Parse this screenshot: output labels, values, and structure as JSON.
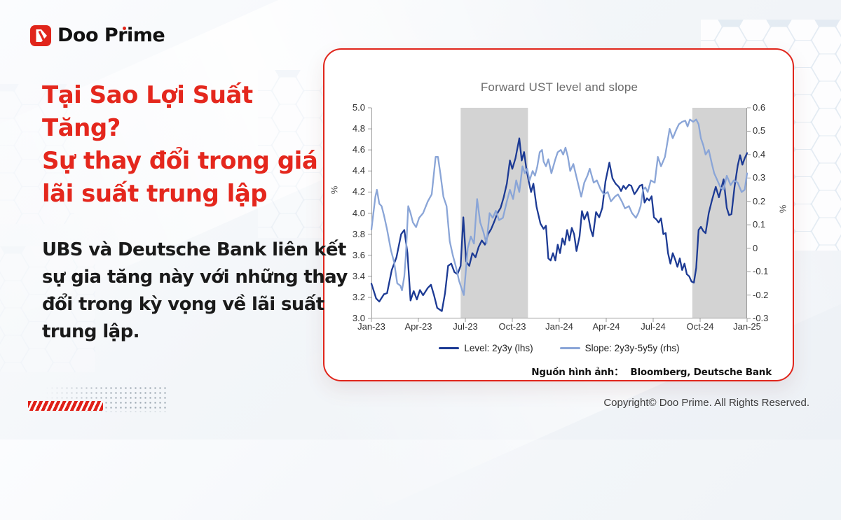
{
  "logo": {
    "text": "Doo Prime"
  },
  "headline": {
    "line1": "Tại Sao Lợi Suất Tăng?",
    "line2": "Sự thay đổi trong giá lãi suất trung lập",
    "color": "#e4271d"
  },
  "body": {
    "text": "UBS và Deutsche Bank liên kết sự gia tăng này với những thay đổi trong kỳ vọng về lãi suất trung lập."
  },
  "footer": {
    "copyright": "Copyright© Doo Prime. All Rights Reserved."
  },
  "colors": {
    "brand_red": "#e0251b",
    "level_line": "#1c3a94",
    "slope_line": "#8aa5d7",
    "shaded_band": "#d3d3d3",
    "axis": "#9b9b9b"
  },
  "chart_data": {
    "type": "line",
    "title": "Forward UST level and slope",
    "source": {
      "label": "Nguồn hình ảnh：",
      "value": "Bloomberg, Deutsche Bank"
    },
    "legend_position": "bottom",
    "grid": false,
    "x_axis": {
      "range_months": [
        0,
        24
      ],
      "tick_months": [
        0,
        3,
        6,
        9,
        12,
        15,
        18,
        21,
        24
      ],
      "tick_labels": [
        "Jan-23",
        "Apr-23",
        "Jul-23",
        "Oct-23",
        "Jan-24",
        "Apr-24",
        "Jul-24",
        "Oct-24",
        "Jan-25"
      ]
    },
    "y_left": {
      "label": "%",
      "min": 3.0,
      "max": 5.0,
      "ticks": [
        "5.0",
        "4.8",
        "4.6",
        "4.4",
        "4.2",
        "4.0",
        "3.8",
        "3.6",
        "3.4",
        "3.2",
        "3.0"
      ]
    },
    "y_right": {
      "label": "%",
      "min": -0.3,
      "max": 0.6,
      "ticks": [
        "0.6",
        "0.5",
        "0.4",
        "0.3",
        "0.2",
        "0.1",
        "0",
        "-0.1",
        "-0.2",
        "-0.3"
      ]
    },
    "shaded_bands_months": [
      [
        5.7,
        10.0
      ],
      [
        20.5,
        24.0
      ]
    ],
    "band_color": "#d3d3d3",
    "axis_color": "#9b9b9b",
    "series": [
      {
        "name": "Level: 2y3y (lhs)",
        "axis": "left",
        "color": "#1c3a94",
        "points": [
          [
            0,
            3.33
          ],
          [
            0.3,
            3.19
          ],
          [
            0.5,
            3.16
          ],
          [
            0.8,
            3.23
          ],
          [
            1.0,
            3.24
          ],
          [
            1.3,
            3.46
          ],
          [
            1.6,
            3.58
          ],
          [
            1.9,
            3.8
          ],
          [
            2.1,
            3.84
          ],
          [
            2.3,
            3.62
          ],
          [
            2.5,
            3.17
          ],
          [
            2.7,
            3.26
          ],
          [
            2.9,
            3.18
          ],
          [
            3.1,
            3.27
          ],
          [
            3.3,
            3.22
          ],
          [
            3.6,
            3.29
          ],
          [
            3.8,
            3.32
          ],
          [
            4.0,
            3.22
          ],
          [
            4.2,
            3.1
          ],
          [
            4.5,
            3.07
          ],
          [
            4.7,
            3.24
          ],
          [
            4.9,
            3.5
          ],
          [
            5.1,
            3.52
          ],
          [
            5.3,
            3.44
          ],
          [
            5.5,
            3.42
          ],
          [
            5.7,
            3.5
          ],
          [
            5.87,
            3.96
          ],
          [
            6.05,
            3.54
          ],
          [
            6.25,
            3.5
          ],
          [
            6.45,
            3.62
          ],
          [
            6.65,
            3.58
          ],
          [
            6.85,
            3.68
          ],
          [
            7.05,
            3.74
          ],
          [
            7.25,
            3.7
          ],
          [
            7.45,
            3.8
          ],
          [
            7.65,
            3.85
          ],
          [
            7.85,
            3.92
          ],
          [
            8.05,
            4.0
          ],
          [
            8.25,
            4.05
          ],
          [
            8.45,
            4.15
          ],
          [
            8.65,
            4.28
          ],
          [
            8.85,
            4.5
          ],
          [
            9.0,
            4.42
          ],
          [
            9.2,
            4.52
          ],
          [
            9.45,
            4.71
          ],
          [
            9.6,
            4.5
          ],
          [
            9.75,
            4.58
          ],
          [
            9.9,
            4.42
          ],
          [
            10.05,
            4.3
          ],
          [
            10.2,
            4.2
          ],
          [
            10.35,
            4.28
          ],
          [
            10.55,
            4.06
          ],
          [
            10.8,
            3.9
          ],
          [
            11.0,
            3.85
          ],
          [
            11.15,
            3.88
          ],
          [
            11.3,
            3.57
          ],
          [
            11.45,
            3.55
          ],
          [
            11.6,
            3.62
          ],
          [
            11.75,
            3.55
          ],
          [
            11.9,
            3.7
          ],
          [
            12.05,
            3.62
          ],
          [
            12.2,
            3.76
          ],
          [
            12.35,
            3.7
          ],
          [
            12.5,
            3.84
          ],
          [
            12.65,
            3.74
          ],
          [
            12.8,
            3.86
          ],
          [
            12.95,
            3.8
          ],
          [
            13.1,
            3.64
          ],
          [
            13.3,
            3.78
          ],
          [
            13.45,
            4.02
          ],
          [
            13.6,
            3.94
          ],
          [
            13.8,
            4.01
          ],
          [
            14.0,
            3.85
          ],
          [
            14.15,
            3.78
          ],
          [
            14.35,
            4.01
          ],
          [
            14.55,
            3.96
          ],
          [
            14.75,
            4.05
          ],
          [
            14.95,
            4.3
          ],
          [
            15.2,
            4.48
          ],
          [
            15.4,
            4.33
          ],
          [
            15.6,
            4.28
          ],
          [
            15.8,
            4.25
          ],
          [
            15.95,
            4.21
          ],
          [
            16.1,
            4.26
          ],
          [
            16.25,
            4.23
          ],
          [
            16.45,
            4.27
          ],
          [
            16.6,
            4.26
          ],
          [
            16.8,
            4.18
          ],
          [
            16.95,
            4.21
          ],
          [
            17.15,
            4.26
          ],
          [
            17.3,
            4.27
          ],
          [
            17.45,
            4.1
          ],
          [
            17.6,
            4.14
          ],
          [
            17.75,
            4.12
          ],
          [
            17.9,
            4.16
          ],
          [
            18.05,
            3.96
          ],
          [
            18.2,
            3.94
          ],
          [
            18.35,
            3.91
          ],
          [
            18.5,
            3.95
          ],
          [
            18.65,
            3.8
          ],
          [
            18.8,
            3.81
          ],
          [
            18.95,
            3.62
          ],
          [
            19.1,
            3.52
          ],
          [
            19.25,
            3.62
          ],
          [
            19.4,
            3.56
          ],
          [
            19.55,
            3.49
          ],
          [
            19.7,
            3.57
          ],
          [
            19.85,
            3.46
          ],
          [
            20.0,
            3.52
          ],
          [
            20.15,
            3.42
          ],
          [
            20.3,
            3.4
          ],
          [
            20.45,
            3.35
          ],
          [
            20.6,
            3.34
          ],
          [
            20.75,
            3.48
          ],
          [
            20.9,
            3.84
          ],
          [
            21.05,
            3.87
          ],
          [
            21.2,
            3.83
          ],
          [
            21.35,
            3.81
          ],
          [
            21.55,
            4.0
          ],
          [
            21.75,
            4.12
          ],
          [
            21.9,
            4.2
          ],
          [
            22.0,
            4.25
          ],
          [
            22.2,
            4.15
          ],
          [
            22.5,
            4.32
          ],
          [
            22.7,
            4.05
          ],
          [
            22.85,
            3.98
          ],
          [
            23.0,
            3.99
          ],
          [
            23.2,
            4.25
          ],
          [
            23.4,
            4.45
          ],
          [
            23.55,
            4.55
          ],
          [
            23.7,
            4.46
          ],
          [
            23.85,
            4.52
          ],
          [
            24,
            4.57
          ]
        ]
      },
      {
        "name": "Slope: 2y3y-5y5y (rhs)",
        "axis": "right",
        "color": "#8aa5d7",
        "points": [
          [
            0,
            0.08
          ],
          [
            0.25,
            0.22
          ],
          [
            0.35,
            0.25
          ],
          [
            0.5,
            0.19
          ],
          [
            0.65,
            0.18
          ],
          [
            0.8,
            0.14
          ],
          [
            1.0,
            0.08
          ],
          [
            1.25,
            -0.01
          ],
          [
            1.45,
            -0.06
          ],
          [
            1.65,
            -0.15
          ],
          [
            1.85,
            -0.16
          ],
          [
            1.95,
            -0.18
          ],
          [
            2.1,
            -0.12
          ],
          [
            2.2,
            -0.03
          ],
          [
            2.35,
            0.18
          ],
          [
            2.5,
            0.15
          ],
          [
            2.65,
            0.11
          ],
          [
            2.85,
            0.09
          ],
          [
            3.05,
            0.13
          ],
          [
            3.3,
            0.15
          ],
          [
            3.6,
            0.2
          ],
          [
            3.85,
            0.23
          ],
          [
            4.1,
            0.39
          ],
          [
            4.25,
            0.39
          ],
          [
            4.4,
            0.32
          ],
          [
            4.6,
            0.22
          ],
          [
            4.8,
            0.18
          ],
          [
            5.0,
            0.03
          ],
          [
            5.2,
            -0.03
          ],
          [
            5.4,
            -0.08
          ],
          [
            5.6,
            -0.14
          ],
          [
            5.75,
            -0.17
          ],
          [
            5.9,
            -0.2
          ],
          [
            6.15,
            0.0
          ],
          [
            6.35,
            0.05
          ],
          [
            6.55,
            0.02
          ],
          [
            6.75,
            0.21
          ],
          [
            6.95,
            0.11
          ],
          [
            7.15,
            0.07
          ],
          [
            7.35,
            0.02
          ],
          [
            7.55,
            0.15
          ],
          [
            7.75,
            0.13
          ],
          [
            7.95,
            0.16
          ],
          [
            8.15,
            0.12
          ],
          [
            8.4,
            0.13
          ],
          [
            8.65,
            0.2
          ],
          [
            8.85,
            0.25
          ],
          [
            9.05,
            0.21
          ],
          [
            9.25,
            0.29
          ],
          [
            9.45,
            0.24
          ],
          [
            9.65,
            0.35
          ],
          [
            9.8,
            0.32
          ],
          [
            9.95,
            0.34
          ],
          [
            10.1,
            0.29
          ],
          [
            10.3,
            0.33
          ],
          [
            10.45,
            0.31
          ],
          [
            10.6,
            0.35
          ],
          [
            10.75,
            0.41
          ],
          [
            10.9,
            0.42
          ],
          [
            11.0,
            0.37
          ],
          [
            11.15,
            0.35
          ],
          [
            11.3,
            0.38
          ],
          [
            11.5,
            0.32
          ],
          [
            11.75,
            0.38
          ],
          [
            11.9,
            0.41
          ],
          [
            12.1,
            0.42
          ],
          [
            12.25,
            0.4
          ],
          [
            12.4,
            0.43
          ],
          [
            12.55,
            0.39
          ],
          [
            12.7,
            0.33
          ],
          [
            12.9,
            0.36
          ],
          [
            13.15,
            0.29
          ],
          [
            13.4,
            0.22
          ],
          [
            13.6,
            0.28
          ],
          [
            13.8,
            0.31
          ],
          [
            13.95,
            0.34
          ],
          [
            14.2,
            0.28
          ],
          [
            14.4,
            0.29
          ],
          [
            14.65,
            0.25
          ],
          [
            14.85,
            0.23
          ],
          [
            15.1,
            0.24
          ],
          [
            15.3,
            0.2
          ],
          [
            15.55,
            0.22
          ],
          [
            15.75,
            0.23
          ],
          [
            16.0,
            0.2
          ],
          [
            16.2,
            0.17
          ],
          [
            16.45,
            0.18
          ],
          [
            16.65,
            0.15
          ],
          [
            16.9,
            0.13
          ],
          [
            17.05,
            0.15
          ],
          [
            17.2,
            0.18
          ],
          [
            17.35,
            0.25
          ],
          [
            17.5,
            0.26
          ],
          [
            17.65,
            0.24
          ],
          [
            17.85,
            0.29
          ],
          [
            18.1,
            0.28
          ],
          [
            18.3,
            0.39
          ],
          [
            18.5,
            0.35
          ],
          [
            18.75,
            0.39
          ],
          [
            19.05,
            0.51
          ],
          [
            19.25,
            0.47
          ],
          [
            19.5,
            0.51
          ],
          [
            19.65,
            0.53
          ],
          [
            19.85,
            0.54
          ],
          [
            20.05,
            0.545
          ],
          [
            20.2,
            0.52
          ],
          [
            20.35,
            0.55
          ],
          [
            20.55,
            0.54
          ],
          [
            20.75,
            0.55
          ],
          [
            20.9,
            0.53
          ],
          [
            21.05,
            0.47
          ],
          [
            21.2,
            0.44
          ],
          [
            21.35,
            0.4
          ],
          [
            21.55,
            0.42
          ],
          [
            21.75,
            0.36
          ],
          [
            21.9,
            0.32
          ],
          [
            22.1,
            0.29
          ],
          [
            22.3,
            0.26
          ],
          [
            22.5,
            0.25
          ],
          [
            22.7,
            0.31
          ],
          [
            22.95,
            0.27
          ],
          [
            23.15,
            0.29
          ],
          [
            23.4,
            0.28
          ],
          [
            23.65,
            0.24
          ],
          [
            23.85,
            0.25
          ],
          [
            24,
            0.32
          ]
        ]
      }
    ]
  }
}
